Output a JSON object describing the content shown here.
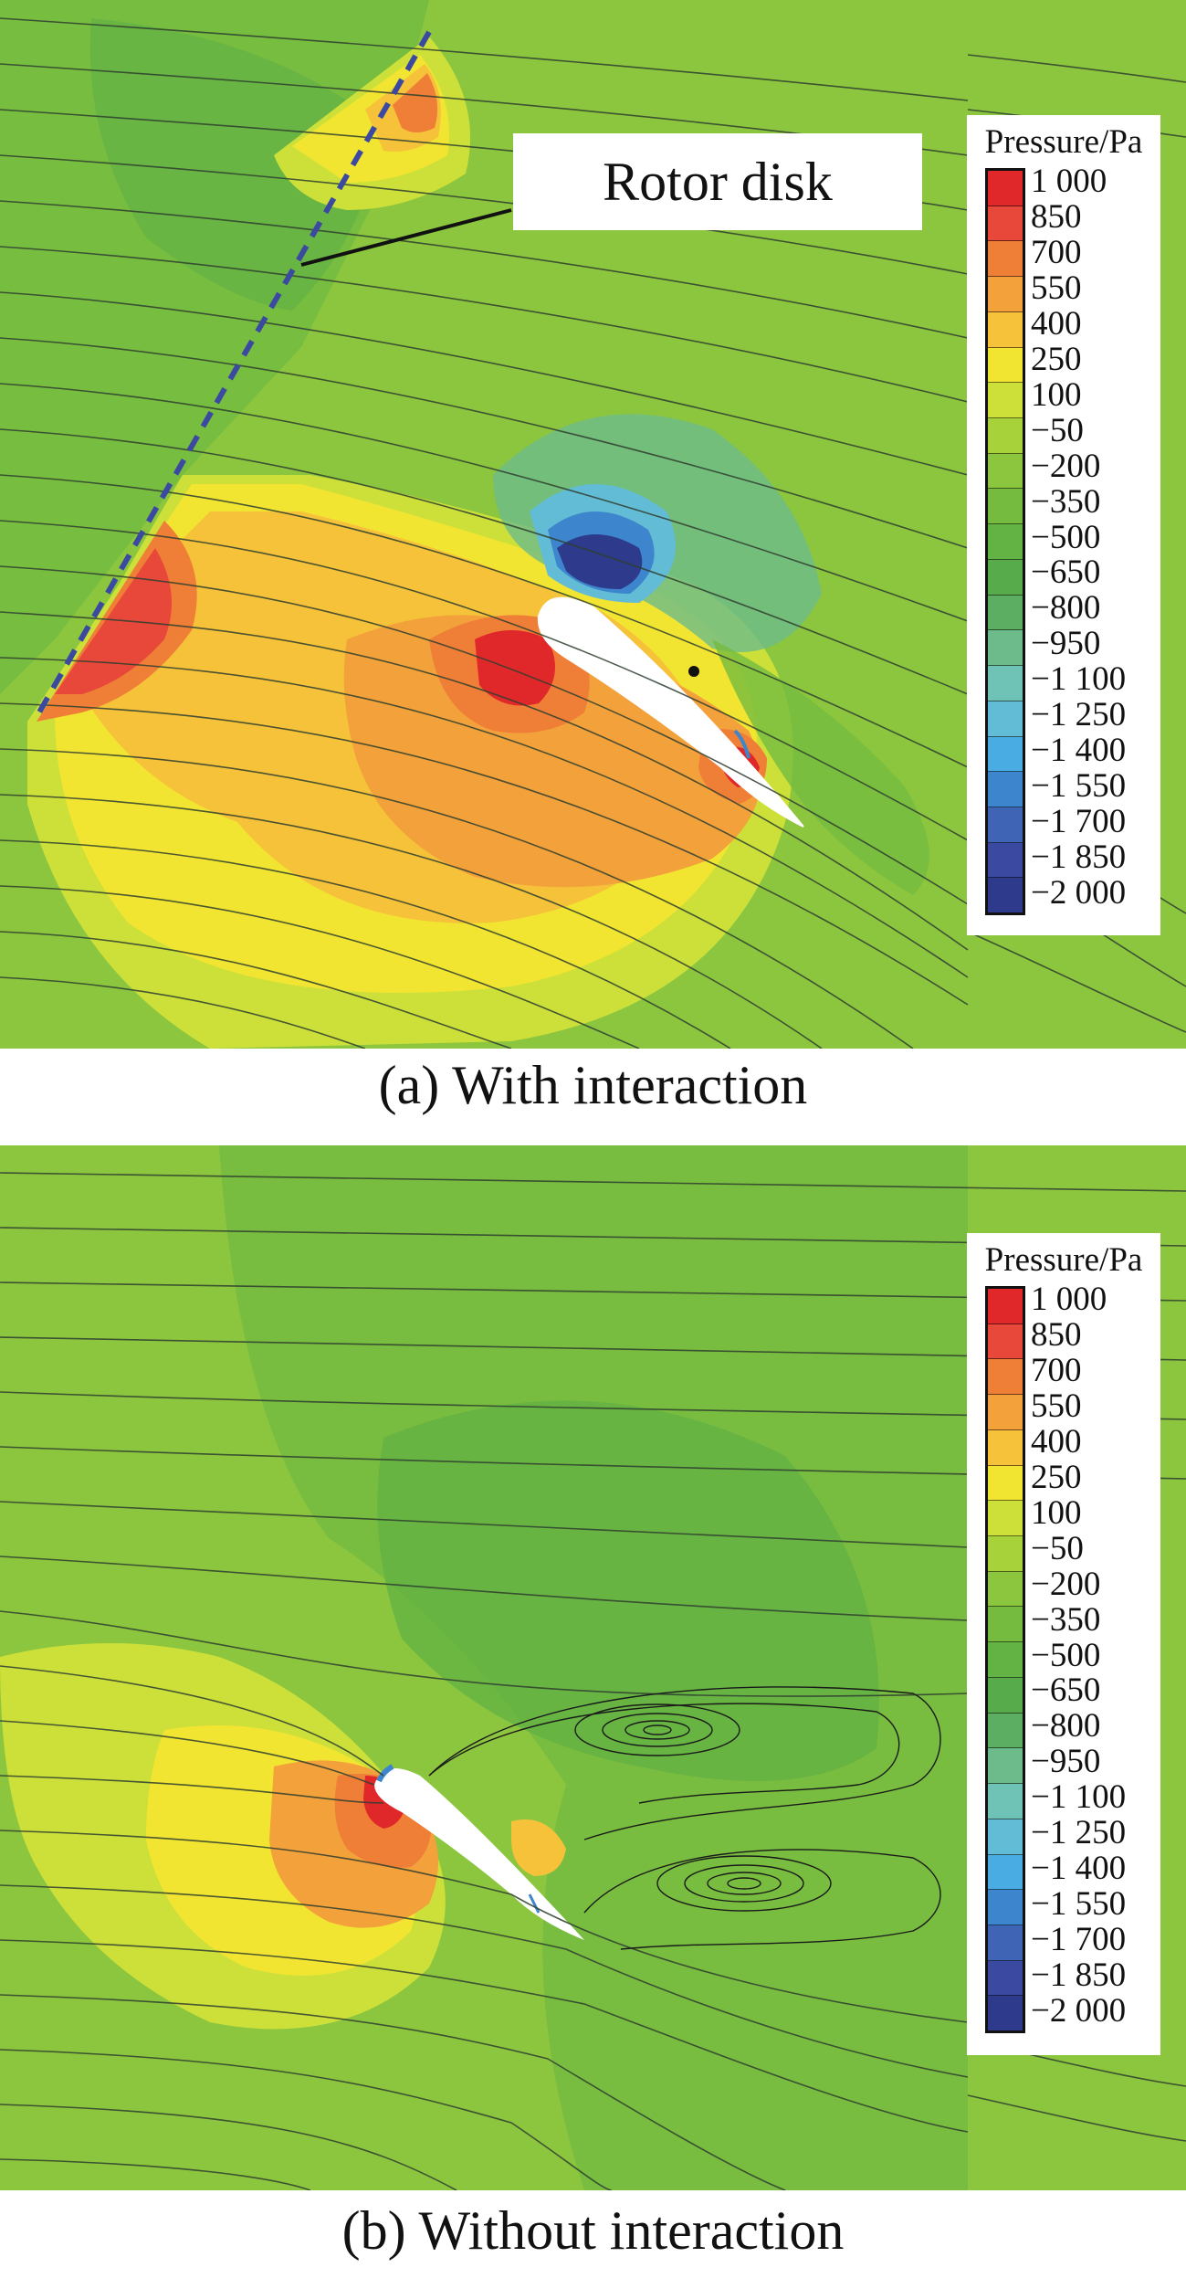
{
  "panels": [
    {
      "caption": "(a) With interaction",
      "annotation": "Rotor disk",
      "legend_title": "Pressure/Pa"
    },
    {
      "caption": "(b) Without interaction",
      "legend_title": "Pressure/Pa"
    }
  ],
  "legend_levels": [
    {
      "label": "1 000",
      "color": "#e0282a"
    },
    {
      "label": "850",
      "color": "#e8483a"
    },
    {
      "label": "700",
      "color": "#ef7f37"
    },
    {
      "label": "550",
      "color": "#f3a13a"
    },
    {
      "label": "400",
      "color": "#f6c23a"
    },
    {
      "label": "250",
      "color": "#f2e531"
    },
    {
      "label": "100",
      "color": "#cde03a"
    },
    {
      "label": "−50",
      "color": "#a8d23a"
    },
    {
      "label": "−200",
      "color": "#8cc63f"
    },
    {
      "label": "−350",
      "color": "#74bb40"
    },
    {
      "label": "−500",
      "color": "#62b244"
    },
    {
      "label": "−650",
      "color": "#58ab4a"
    },
    {
      "label": "−800",
      "color": "#5cae63"
    },
    {
      "label": "−950",
      "color": "#6dbb8a"
    },
    {
      "label": "−1 100",
      "color": "#6fc2b6"
    },
    {
      "label": "−1 250",
      "color": "#63bcd6"
    },
    {
      "label": "−1 400",
      "color": "#49ace3"
    },
    {
      "label": "−1 550",
      "color": "#3d86cd"
    },
    {
      "label": "−1 700",
      "color": "#3f64b5"
    },
    {
      "label": "−1 850",
      "color": "#3b4aa0"
    },
    {
      "label": "−2 000",
      "color": "#2e3a8c"
    }
  ]
}
